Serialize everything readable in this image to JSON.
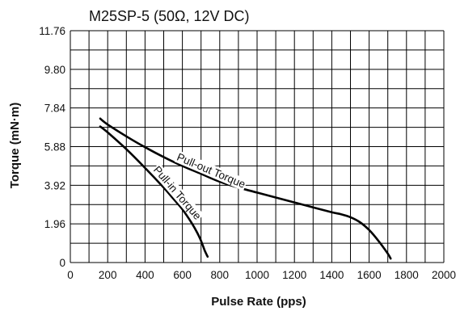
{
  "chart_data": {
    "type": "line",
    "title": "M25SP-5 (50Ω, 12V DC)",
    "xlabel": "Pulse Rate (pps)",
    "ylabel": "Torque (mN·m)",
    "xlim": [
      0,
      2000
    ],
    "ylim": [
      0,
      11.76
    ],
    "x_ticks": [
      0,
      200,
      400,
      600,
      800,
      1000,
      1200,
      1400,
      1600,
      1800,
      2000
    ],
    "y_ticks": [
      "0",
      "1.96",
      "3.92",
      "5.88",
      "7.84",
      "9.80",
      "11.76"
    ],
    "grid": true,
    "series": [
      {
        "name": "Pull-out Torque",
        "x": [
          160,
          200,
          300,
          400,
          500,
          600,
          700,
          800,
          900,
          1000,
          1100,
          1200,
          1300,
          1400,
          1450,
          1500,
          1550,
          1600,
          1650,
          1700,
          1715
        ],
        "y": [
          7.3,
          7.0,
          6.4,
          5.85,
          5.35,
          4.9,
          4.5,
          4.1,
          3.8,
          3.55,
          3.3,
          3.05,
          2.8,
          2.55,
          2.45,
          2.3,
          2.05,
          1.65,
          1.1,
          0.45,
          0.2
        ]
      },
      {
        "name": "Pull-in Torque",
        "x": [
          160,
          200,
          300,
          400,
          500,
          550,
          600,
          650,
          680,
          700,
          720,
          735
        ],
        "y": [
          6.9,
          6.6,
          5.75,
          4.8,
          3.8,
          3.25,
          2.7,
          2.0,
          1.5,
          1.1,
          0.6,
          0.3
        ]
      }
    ],
    "annotations": [
      {
        "text": "Pull-out Torque",
        "series": 0
      },
      {
        "text": "Pull-in Torque",
        "series": 1
      }
    ]
  }
}
